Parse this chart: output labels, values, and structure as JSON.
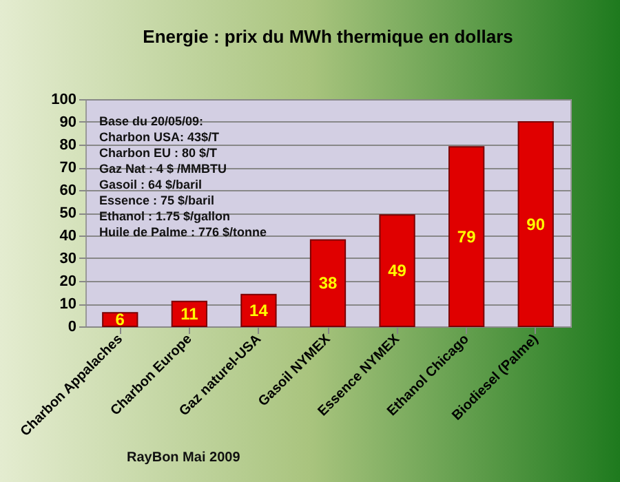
{
  "chart_data": {
    "type": "bar",
    "title": "Energie : prix du MWh  thermique en dollars",
    "categories": [
      "Charbon Appalaches",
      "Charbon Europe",
      "Gaz naturel-USA",
      "Gasoil NYMEX",
      "Essence NYMEX",
      "Ethanol Chicago",
      "Biodiesel (Palme)"
    ],
    "values": [
      6,
      11,
      14,
      38,
      49,
      79,
      90
    ],
    "color": "#e00000",
    "ylim": [
      0,
      100
    ],
    "yticks": [
      0,
      10,
      20,
      30,
      40,
      50,
      60,
      70,
      80,
      90,
      100
    ],
    "grid": "y",
    "data_labels": true,
    "annotations": [
      "Base du 20/05/09:",
      "Charbon  USA:  43$/T",
      "Charbon  EU : 80 $/T",
      "Gaz Nat : 4 $ /MMBTU",
      "Gasoil : 64 $/baril",
      "Essence : 75 $/baril",
      "Ethanol : 1.75 $/gallon",
      "Huile de Palme : 776 $/tonne",
      "RayBon Mai 2009"
    ]
  }
}
